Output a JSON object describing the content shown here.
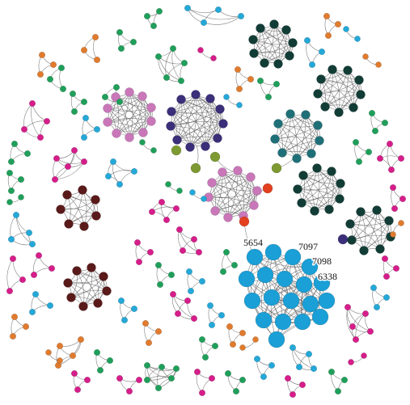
{
  "labels": {
    "node_5654": "5654",
    "node_7097": "7097",
    "node_7098": "7098",
    "node_6338": "6338"
  },
  "colors": {
    "blue": "#1a9fd6",
    "navy": "#3b2f7a",
    "pink": "#c977b9",
    "teal": "#1f6f78",
    "dark_green": "#123d36",
    "brown": "#5a1a1a",
    "olive": "#7d9a32",
    "red": "#e2401f",
    "magenta": "#d61d8a",
    "green": "#1f9f5a",
    "cyan": "#24a8d8",
    "orange": "#e07b2e",
    "edge": "#555555"
  }
}
